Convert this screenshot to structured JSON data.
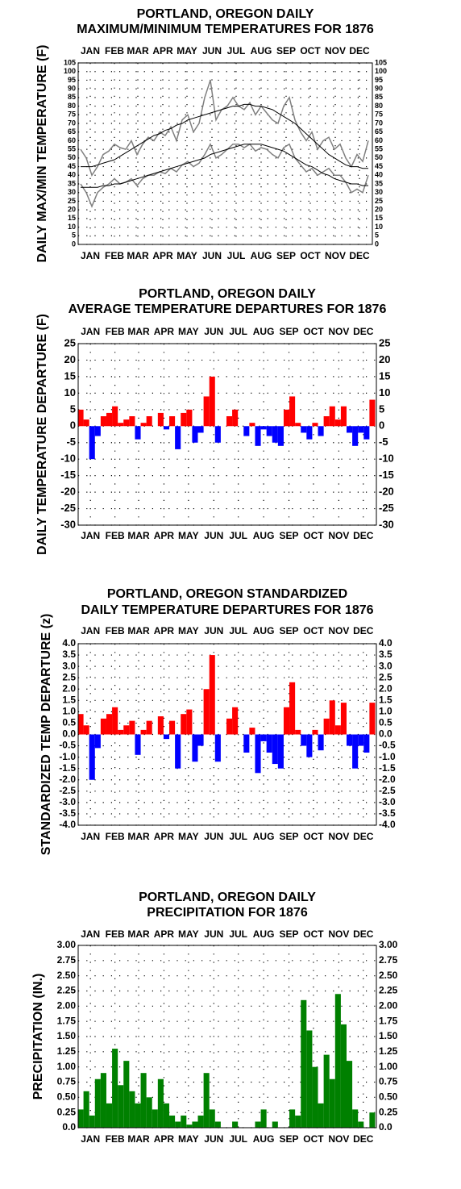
{
  "chart_data": [
    {
      "type": "line",
      "title_lines": [
        "PORTLAND, OREGON DAILY",
        "MAXIMUM/MINIMUM TEMPERATURES FOR 1876"
      ],
      "y_label": "DAILY MAX/MIN TEMPERATURE (F)",
      "x": [
        4,
        11,
        18,
        25,
        32,
        39,
        46,
        53,
        60,
        67,
        74,
        81,
        88,
        95,
        102,
        109,
        116,
        123,
        130,
        137,
        144,
        151,
        158,
        165,
        172,
        179,
        186,
        193,
        200,
        207,
        214,
        221,
        228,
        235,
        242,
        249,
        256,
        263,
        270,
        277,
        284,
        291,
        298,
        305,
        312,
        319,
        326,
        333,
        340,
        347,
        354,
        361
      ],
      "xlim": [
        1,
        366
      ],
      "xticks": [
        {
          "value": 16,
          "label": "JAN"
        },
        {
          "value": 46,
          "label": "FEB"
        },
        {
          "value": 75,
          "label": "MAR"
        },
        {
          "value": 106,
          "label": "APR"
        },
        {
          "value": 136,
          "label": "MAY"
        },
        {
          "value": 167,
          "label": "JUN"
        },
        {
          "value": 197,
          "label": "JUL"
        },
        {
          "value": 228,
          "label": "AUG"
        },
        {
          "value": 259,
          "label": "SEP"
        },
        {
          "value": 289,
          "label": "OCT"
        },
        {
          "value": 320,
          "label": "NOV"
        },
        {
          "value": 350,
          "label": "DEC"
        }
      ],
      "ylim": [
        0,
        105
      ],
      "yticks": [
        0,
        5,
        10,
        15,
        20,
        25,
        30,
        35,
        40,
        45,
        50,
        55,
        60,
        65,
        70,
        75,
        80,
        85,
        90,
        95,
        100,
        105
      ],
      "grid": true,
      "series": [
        {
          "color": "#808080",
          "values": [
            55,
            50,
            40,
            45,
            52,
            54,
            58,
            56,
            55,
            60,
            52,
            58,
            62,
            60,
            65,
            63,
            68,
            60,
            72,
            75,
            65,
            70,
            85,
            95,
            72,
            78,
            80,
            85,
            80,
            78,
            82,
            75,
            80,
            76,
            72,
            70,
            80,
            85,
            72,
            65,
            60,
            65,
            55,
            60,
            62,
            55,
            58,
            50,
            45,
            52,
            48,
            60
          ]
        },
        {
          "color": "#808080",
          "values": [
            35,
            30,
            22,
            30,
            33,
            35,
            38,
            35,
            36,
            38,
            34,
            38,
            40,
            40,
            42,
            41,
            44,
            42,
            46,
            48,
            45,
            47,
            52,
            58,
            50,
            52,
            55,
            58,
            58,
            56,
            58,
            54,
            56,
            55,
            52,
            50,
            56,
            58,
            50,
            46,
            42,
            44,
            40,
            42,
            44,
            40,
            40,
            36,
            30,
            32,
            30,
            40
          ]
        },
        {
          "color": "#000000",
          "values": [
            45,
            45,
            45,
            46,
            47,
            48,
            49,
            51,
            53,
            55,
            57,
            59,
            61,
            63,
            64,
            66,
            67,
            69,
            70,
            72,
            73,
            74,
            75,
            76,
            77,
            78,
            79,
            80,
            80,
            81,
            81,
            80,
            80,
            79,
            78,
            76,
            74,
            72,
            70,
            67,
            64,
            61,
            58,
            55,
            52,
            50,
            48,
            46,
            45,
            45,
            44,
            44
          ]
        },
        {
          "color": "#000000",
          "values": [
            33,
            33,
            33,
            33,
            34,
            34,
            35,
            35,
            36,
            37,
            38,
            39,
            40,
            41,
            42,
            43,
            44,
            45,
            46,
            47,
            48,
            49,
            50,
            52,
            53,
            54,
            55,
            56,
            57,
            58,
            58,
            58,
            58,
            57,
            56,
            55,
            54,
            52,
            50,
            48,
            46,
            45,
            43,
            41,
            40,
            38,
            37,
            36,
            35,
            35,
            34,
            34
          ]
        }
      ]
    },
    {
      "type": "bar",
      "title_lines": [
        "PORTLAND, OREGON DAILY",
        "AVERAGE TEMPERATURE DEPARTURES FOR 1876"
      ],
      "y_label": "DAILY TEMPERATURE DEPARTURE (F)",
      "x": [
        4,
        11,
        18,
        25,
        32,
        39,
        46,
        53,
        60,
        67,
        74,
        81,
        88,
        95,
        102,
        109,
        116,
        123,
        130,
        137,
        144,
        151,
        158,
        165,
        172,
        179,
        186,
        193,
        200,
        207,
        214,
        221,
        228,
        235,
        242,
        249,
        256,
        263,
        270,
        277,
        284,
        291,
        298,
        305,
        312,
        319,
        326,
        333,
        340,
        347,
        354,
        361
      ],
      "xlim": [
        1,
        366
      ],
      "xticks": [
        {
          "value": 16,
          "label": "JAN"
        },
        {
          "value": 46,
          "label": "FEB"
        },
        {
          "value": 75,
          "label": "MAR"
        },
        {
          "value": 106,
          "label": "APR"
        },
        {
          "value": 136,
          "label": "MAY"
        },
        {
          "value": 167,
          "label": "JUN"
        },
        {
          "value": 197,
          "label": "JUL"
        },
        {
          "value": 228,
          "label": "AUG"
        },
        {
          "value": 259,
          "label": "SEP"
        },
        {
          "value": 289,
          "label": "OCT"
        },
        {
          "value": 320,
          "label": "NOV"
        },
        {
          "value": 350,
          "label": "DEC"
        }
      ],
      "ylim": [
        -30,
        25
      ],
      "yticks": [
        -30,
        -25,
        -20,
        -15,
        -10,
        -5,
        0,
        5,
        10,
        15,
        20,
        25
      ],
      "grid": true,
      "positive_color": "#ff0000",
      "negative_color": "#0000ff",
      "values": [
        5,
        2,
        -10,
        -3,
        3,
        4,
        6,
        1,
        2,
        3,
        -4,
        1,
        3,
        0,
        4,
        -1,
        3,
        -7,
        4,
        5,
        -5,
        -2,
        9,
        15,
        -5,
        0,
        3,
        5,
        0,
        -3,
        1,
        -6,
        -1,
        -3,
        -5,
        -6,
        5,
        9,
        1,
        -2,
        -4,
        1,
        -3,
        3,
        6,
        2,
        6,
        -2,
        -6,
        -2,
        -4,
        8
      ]
    },
    {
      "type": "bar",
      "title_lines": [
        "PORTLAND, OREGON STANDARDIZED",
        "DAILY TEMPERATURE DEPARTURES FOR 1876"
      ],
      "y_label": "STANDARDIZED TEMP DEPARTURE (z)",
      "x": [
        4,
        11,
        18,
        25,
        32,
        39,
        46,
        53,
        60,
        67,
        74,
        81,
        88,
        95,
        102,
        109,
        116,
        123,
        130,
        137,
        144,
        151,
        158,
        165,
        172,
        179,
        186,
        193,
        200,
        207,
        214,
        221,
        228,
        235,
        242,
        249,
        256,
        263,
        270,
        277,
        284,
        291,
        298,
        305,
        312,
        319,
        326,
        333,
        340,
        347,
        354,
        361
      ],
      "xlim": [
        1,
        366
      ],
      "xticks": [
        {
          "value": 16,
          "label": "JAN"
        },
        {
          "value": 46,
          "label": "FEB"
        },
        {
          "value": 75,
          "label": "MAR"
        },
        {
          "value": 106,
          "label": "APR"
        },
        {
          "value": 136,
          "label": "MAY"
        },
        {
          "value": 167,
          "label": "JUN"
        },
        {
          "value": 197,
          "label": "JUL"
        },
        {
          "value": 228,
          "label": "AUG"
        },
        {
          "value": 259,
          "label": "SEP"
        },
        {
          "value": 289,
          "label": "OCT"
        },
        {
          "value": 320,
          "label": "NOV"
        },
        {
          "value": 350,
          "label": "DEC"
        }
      ],
      "ylim": [
        -4,
        4
      ],
      "yticks": [
        {
          "value": -4,
          "label": "-4.0"
        },
        {
          "value": -3.5,
          "label": "-3.5"
        },
        {
          "value": -3,
          "label": "-3.0"
        },
        {
          "value": -2.5,
          "label": "-2.5"
        },
        {
          "value": -2,
          "label": "-2.0"
        },
        {
          "value": -1.5,
          "label": "-1.5"
        },
        {
          "value": -1,
          "label": "-1.0"
        },
        {
          "value": -0.5,
          "label": "-0.5"
        },
        {
          "value": 0,
          "label": "0.0"
        },
        {
          "value": 0.5,
          "label": "0.5"
        },
        {
          "value": 1,
          "label": "1.0"
        },
        {
          "value": 1.5,
          "label": "1.5"
        },
        {
          "value": 2,
          "label": "2.0"
        },
        {
          "value": 2.5,
          "label": "2.5"
        },
        {
          "value": 3,
          "label": "3.0"
        },
        {
          "value": 3.5,
          "label": "3.5"
        },
        {
          "value": 4,
          "label": "4.0"
        }
      ],
      "grid": true,
      "positive_color": "#ff0000",
      "negative_color": "#0000ff",
      "values": [
        0.9,
        0.4,
        -2.0,
        -0.6,
        0.7,
        0.9,
        1.2,
        0.2,
        0.4,
        0.6,
        -0.9,
        0.2,
        0.6,
        0,
        0.8,
        -0.2,
        0.6,
        -1.5,
        0.9,
        1.1,
        -1.2,
        -0.5,
        2.0,
        3.5,
        -1.2,
        0,
        0.7,
        1.2,
        0,
        -0.8,
        0.3,
        -1.7,
        -0.3,
        -0.8,
        -1.3,
        -1.5,
        1.2,
        2.3,
        0.2,
        -0.5,
        -1.0,
        0.2,
        -0.7,
        0.7,
        1.5,
        0.4,
        1.4,
        -0.5,
        -1.5,
        -0.5,
        -0.8,
        1.4
      ]
    },
    {
      "type": "bar",
      "title_lines": [
        "PORTLAND, OREGON DAILY",
        "PRECIPITATION FOR 1876"
      ],
      "y_label": "PRECIPITATION (IN.)",
      "x": [
        4,
        11,
        18,
        25,
        32,
        39,
        46,
        53,
        60,
        67,
        74,
        81,
        88,
        95,
        102,
        109,
        116,
        123,
        130,
        137,
        144,
        151,
        158,
        165,
        172,
        179,
        186,
        193,
        200,
        207,
        214,
        221,
        228,
        235,
        242,
        249,
        256,
        263,
        270,
        277,
        284,
        291,
        298,
        305,
        312,
        319,
        326,
        333,
        340,
        347,
        354,
        361
      ],
      "xlim": [
        1,
        366
      ],
      "xticks": [
        {
          "value": 16,
          "label": "JAN"
        },
        {
          "value": 46,
          "label": "FEB"
        },
        {
          "value": 75,
          "label": "MAR"
        },
        {
          "value": 106,
          "label": "APR"
        },
        {
          "value": 136,
          "label": "MAY"
        },
        {
          "value": 167,
          "label": "JUN"
        },
        {
          "value": 197,
          "label": "JUL"
        },
        {
          "value": 228,
          "label": "AUG"
        },
        {
          "value": 259,
          "label": "SEP"
        },
        {
          "value": 289,
          "label": "OCT"
        },
        {
          "value": 320,
          "label": "NOV"
        },
        {
          "value": 350,
          "label": "DEC"
        }
      ],
      "ylim": [
        0,
        3
      ],
      "yticks": [
        {
          "value": 0,
          "label": "0.0"
        },
        {
          "value": 0.25,
          "label": "0.25"
        },
        {
          "value": 0.5,
          "label": "0.50"
        },
        {
          "value": 0.75,
          "label": "0.75"
        },
        {
          "value": 1,
          "label": "1.00"
        },
        {
          "value": 1.25,
          "label": "1.25"
        },
        {
          "value": 1.5,
          "label": "1.50"
        },
        {
          "value": 1.75,
          "label": "1.75"
        },
        {
          "value": 2,
          "label": "2.00"
        },
        {
          "value": 2.25,
          "label": "2.25"
        },
        {
          "value": 2.5,
          "label": "2.50"
        },
        {
          "value": 2.75,
          "label": "2.75"
        },
        {
          "value": 3,
          "label": "3.00"
        }
      ],
      "grid": true,
      "color": "#008000",
      "values": [
        0.3,
        0.6,
        0.2,
        0.8,
        0.9,
        0.4,
        1.3,
        0.7,
        1.1,
        0.6,
        0.4,
        0.9,
        0.5,
        0.3,
        0.8,
        0.4,
        0.2,
        0.1,
        0.2,
        0.05,
        0.1,
        0.2,
        0.9,
        0.3,
        0.1,
        0,
        0,
        0.1,
        0,
        0,
        0,
        0.1,
        0.3,
        0,
        0.1,
        0,
        0,
        0.3,
        0.2,
        2.1,
        1.6,
        1.0,
        0.4,
        1.2,
        0.8,
        2.2,
        1.7,
        1.1,
        0.3,
        0.1,
        0,
        0.25
      ]
    }
  ]
}
